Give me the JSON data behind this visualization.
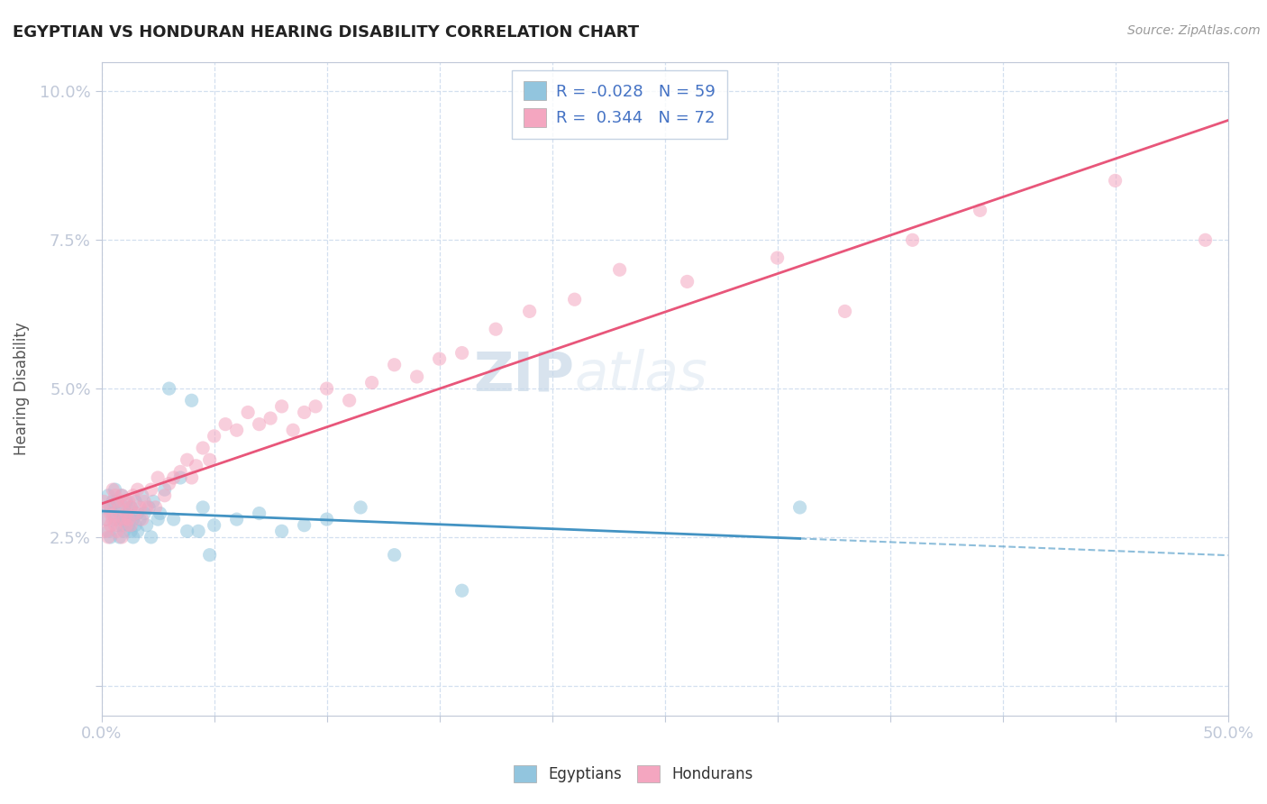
{
  "title": "EGYPTIAN VS HONDURAN HEARING DISABILITY CORRELATION CHART",
  "source_text": "Source: ZipAtlas.com",
  "ylabel": "Hearing Disability",
  "xlim": [
    0.0,
    0.5
  ],
  "ylim": [
    -0.005,
    0.105
  ],
  "xticks": [
    0.0,
    0.05,
    0.1,
    0.15,
    0.2,
    0.25,
    0.3,
    0.35,
    0.4,
    0.45,
    0.5
  ],
  "yticks": [
    0.0,
    0.025,
    0.05,
    0.075,
    0.1
  ],
  "yticklabels": [
    "",
    "2.5%",
    "5.0%",
    "7.5%",
    "10.0%"
  ],
  "r_egyptian": -0.028,
  "n_egyptian": 59,
  "r_honduran": 0.344,
  "n_honduran": 72,
  "color_egyptian": "#92c5de",
  "color_honduran": "#f4a6c0",
  "color_line_egyptian": "#4393c3",
  "color_line_honduran": "#e8567a",
  "watermark_zip": "ZIP",
  "watermark_atlas": "atlas",
  "egyptian_x": [
    0.001,
    0.002,
    0.003,
    0.003,
    0.004,
    0.004,
    0.005,
    0.005,
    0.006,
    0.006,
    0.007,
    0.007,
    0.008,
    0.008,
    0.009,
    0.009,
    0.01,
    0.01,
    0.01,
    0.011,
    0.011,
    0.012,
    0.012,
    0.013,
    0.013,
    0.014,
    0.014,
    0.015,
    0.015,
    0.016,
    0.016,
    0.017,
    0.018,
    0.019,
    0.02,
    0.021,
    0.022,
    0.023,
    0.025,
    0.026,
    0.028,
    0.03,
    0.032,
    0.035,
    0.038,
    0.04,
    0.043,
    0.045,
    0.048,
    0.05,
    0.06,
    0.07,
    0.08,
    0.09,
    0.1,
    0.115,
    0.13,
    0.16,
    0.31
  ],
  "egyptian_y": [
    0.03,
    0.028,
    0.032,
    0.026,
    0.03,
    0.025,
    0.029,
    0.031,
    0.028,
    0.033,
    0.027,
    0.031,
    0.029,
    0.025,
    0.032,
    0.027,
    0.028,
    0.026,
    0.03,
    0.031,
    0.028,
    0.029,
    0.027,
    0.03,
    0.026,
    0.028,
    0.025,
    0.031,
    0.027,
    0.029,
    0.026,
    0.028,
    0.032,
    0.029,
    0.027,
    0.03,
    0.025,
    0.031,
    0.028,
    0.029,
    0.033,
    0.05,
    0.028,
    0.035,
    0.026,
    0.048,
    0.026,
    0.03,
    0.022,
    0.027,
    0.028,
    0.029,
    0.026,
    0.027,
    0.028,
    0.03,
    0.022,
    0.016,
    0.03
  ],
  "honduran_x": [
    0.001,
    0.002,
    0.002,
    0.003,
    0.003,
    0.004,
    0.004,
    0.005,
    0.005,
    0.006,
    0.006,
    0.007,
    0.007,
    0.008,
    0.008,
    0.009,
    0.009,
    0.01,
    0.01,
    0.011,
    0.011,
    0.012,
    0.012,
    0.013,
    0.013,
    0.014,
    0.015,
    0.016,
    0.017,
    0.018,
    0.019,
    0.02,
    0.022,
    0.024,
    0.025,
    0.028,
    0.03,
    0.032,
    0.035,
    0.038,
    0.04,
    0.042,
    0.045,
    0.048,
    0.05,
    0.055,
    0.06,
    0.065,
    0.07,
    0.075,
    0.08,
    0.085,
    0.09,
    0.095,
    0.1,
    0.11,
    0.12,
    0.13,
    0.14,
    0.15,
    0.16,
    0.175,
    0.19,
    0.21,
    0.23,
    0.26,
    0.3,
    0.33,
    0.36,
    0.39,
    0.45,
    0.49
  ],
  "honduran_y": [
    0.031,
    0.028,
    0.026,
    0.03,
    0.025,
    0.029,
    0.027,
    0.033,
    0.028,
    0.032,
    0.027,
    0.031,
    0.026,
    0.03,
    0.028,
    0.025,
    0.032,
    0.028,
    0.031,
    0.029,
    0.027,
    0.031,
    0.028,
    0.03,
    0.027,
    0.032,
    0.029,
    0.033,
    0.03,
    0.028,
    0.031,
    0.03,
    0.033,
    0.03,
    0.035,
    0.032,
    0.034,
    0.035,
    0.036,
    0.038,
    0.035,
    0.037,
    0.04,
    0.038,
    0.042,
    0.044,
    0.043,
    0.046,
    0.044,
    0.045,
    0.047,
    0.043,
    0.046,
    0.047,
    0.05,
    0.048,
    0.051,
    0.054,
    0.052,
    0.055,
    0.056,
    0.06,
    0.063,
    0.065,
    0.07,
    0.068,
    0.072,
    0.063,
    0.075,
    0.08,
    0.085,
    0.075
  ]
}
